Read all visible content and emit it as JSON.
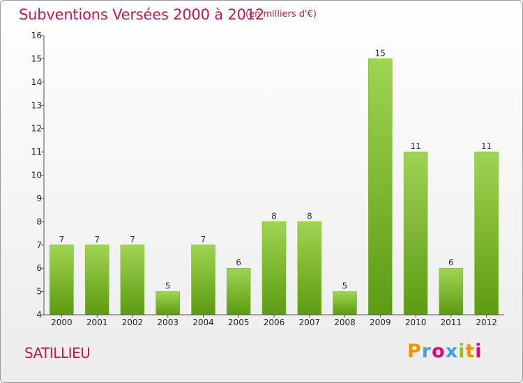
{
  "title": "Subventions Versées 2000 à 2012",
  "subtitle": "(en milliers d'€)",
  "commune": "SATILLIEU",
  "logo": {
    "letters": [
      "P",
      "r",
      "o",
      "x",
      "i",
      "t",
      "i"
    ],
    "colors": [
      "#f29400",
      "#3aa7dc",
      "#e6007e",
      "#3aa7dc",
      "#95c11f",
      "#f29400",
      "#e6007e"
    ]
  },
  "colors": {
    "bar_top": "#9fd452",
    "bar_bottom": "#5e9a12",
    "title": "#c1184f",
    "axis": "#555555"
  },
  "chart_data": {
    "type": "bar",
    "categories": [
      "2000",
      "2001",
      "2002",
      "2003",
      "2004",
      "2005",
      "2006",
      "2007",
      "2008",
      "2009",
      "2010",
      "2011",
      "2012"
    ],
    "values": [
      7,
      7,
      7,
      5,
      7,
      6,
      8,
      8,
      5,
      15,
      11,
      6,
      11
    ],
    "ylim": [
      4,
      16
    ],
    "yticks": [
      4,
      5,
      6,
      7,
      8,
      9,
      10,
      11,
      12,
      13,
      14,
      15,
      16
    ],
    "grid": false,
    "data_labels": true
  }
}
